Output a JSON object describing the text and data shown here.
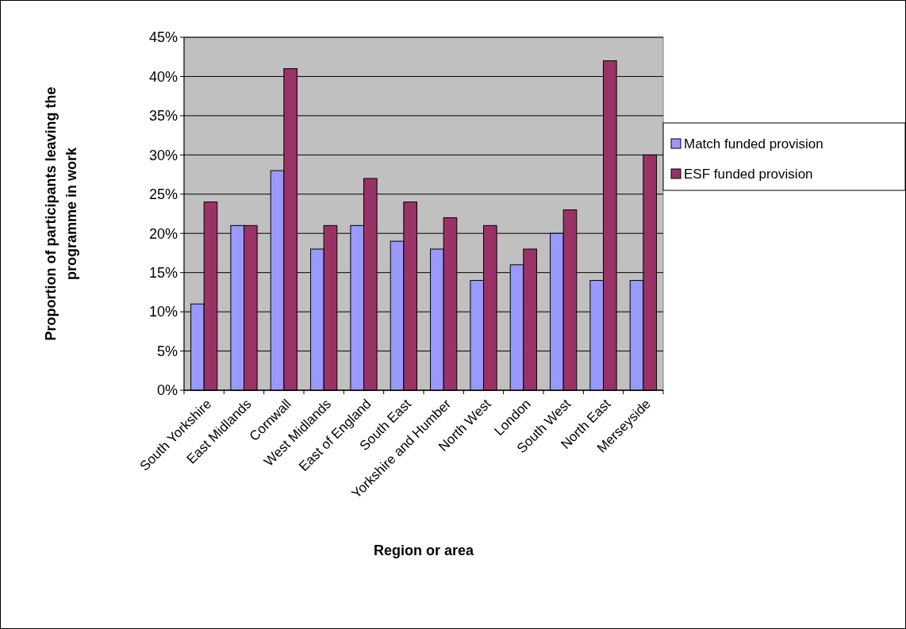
{
  "chart_data": {
    "type": "bar",
    "xlabel": "Region or area",
    "ylabel": "Proportion of participants leaving the programme in work",
    "categories": [
      "South Yorkshire",
      "East Midlands",
      "Cornwall",
      "West Midlands",
      "East of England",
      "South East",
      "Yorkshire and Humber",
      "North West",
      "London",
      "South West",
      "North East",
      "Merseyside"
    ],
    "series": [
      {
        "name": "Match funded provision",
        "color": "#9999ff",
        "values": [
          11,
          21,
          28,
          18,
          21,
          19,
          18,
          14,
          16,
          20,
          14,
          14
        ]
      },
      {
        "name": "ESF funded provision",
        "color": "#993366",
        "values": [
          24,
          21,
          41,
          21,
          27,
          24,
          22,
          21,
          18,
          23,
          42,
          30
        ]
      }
    ],
    "ylim": [
      0,
      45
    ],
    "yticks": [
      {
        "value": 0,
        "label": "0%"
      },
      {
        "value": 5,
        "label": "5%"
      },
      {
        "value": 10,
        "label": "10%"
      },
      {
        "value": 15,
        "label": "15%"
      },
      {
        "value": 20,
        "label": "20%"
      },
      {
        "value": 25,
        "label": "25%"
      },
      {
        "value": 30,
        "label": "30%"
      },
      {
        "value": 35,
        "label": "35%"
      },
      {
        "value": 40,
        "label": "40%"
      },
      {
        "value": 45,
        "label": "45%"
      }
    ],
    "grid": "y",
    "legend": "right"
  }
}
